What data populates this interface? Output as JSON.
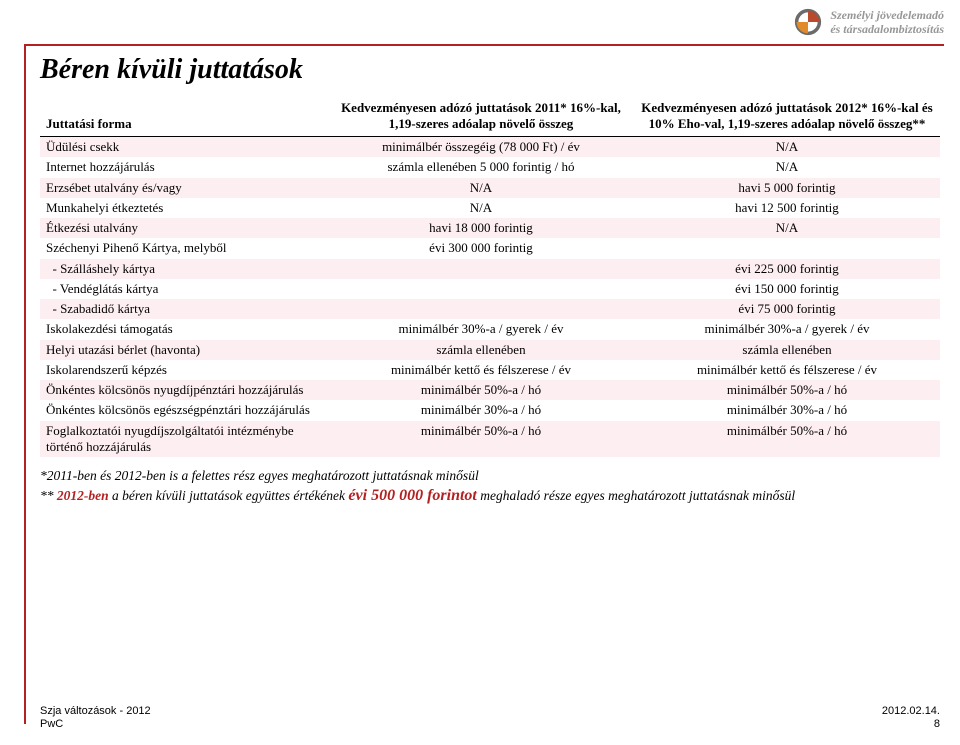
{
  "colors": {
    "accent": "#b22222",
    "shade": "#fdeef1",
    "header_text": "#979797",
    "background": "#ffffff"
  },
  "header": {
    "line1": "Személyi jövedelemadó",
    "line2": "és társadalombiztosítás"
  },
  "title": "Béren kívüli juttatások",
  "table": {
    "col1": "Juttatási forma",
    "col2": "Kedvezményesen adózó juttatások 2011* 16%-kal, 1,19-szeres adóalap növelő összeg",
    "col3": "Kedvezményesen adózó juttatások 2012* 16%-kal és 10% Eho-val, 1,19-szeres adóalap növelő összeg**",
    "rows": [
      {
        "c1": "Üdülési csekk",
        "c2": "minimálbér összegéig (78 000 Ft) / év",
        "c3": "N/A",
        "shade": true
      },
      {
        "c1": "Internet hozzájárulás",
        "c2": "számla ellenében 5 000 forintig / hó",
        "c3": "N/A",
        "shade": false
      },
      {
        "c1": "Erzsébet utalvány és/vagy",
        "c2": "N/A",
        "c3": "havi 5 000 forintig",
        "shade": true
      },
      {
        "c1": "Munkahelyi étkeztetés",
        "c2": "N/A",
        "c3": "havi 12 500 forintig",
        "shade": false
      },
      {
        "c1": "Étkezési utalvány",
        "c2": "havi 18 000 forintig",
        "c3": "N/A",
        "shade": true
      },
      {
        "c1": "Széchenyi Pihenő Kártya, melyből",
        "c2": "évi 300 000 forintig",
        "c3": "",
        "shade": false
      },
      {
        "c1": "  - Szálláshely kártya",
        "c2": "",
        "c3": "évi 225 000 forintig",
        "shade": true
      },
      {
        "c1": "  - Vendéglátás kártya",
        "c2": "",
        "c3": "évi 150 000 forintig",
        "shade": false
      },
      {
        "c1": "  - Szabadidő kártya",
        "c2": "",
        "c3": "évi 75 000 forintig",
        "shade": true
      },
      {
        "c1": "Iskolakezdési támogatás",
        "c2": "minimálbér 30%-a / gyerek / év",
        "c3": "minimálbér 30%-a / gyerek / év",
        "shade": false
      },
      {
        "c1": "Helyi utazási bérlet (havonta)",
        "c2": "számla ellenében",
        "c3": "számla ellenében",
        "shade": true
      },
      {
        "c1": "Iskolarendszerű képzés",
        "c2": "minimálbér kettő és félszerese / év",
        "c3": "minimálbér kettő és félszerese / év",
        "shade": false
      },
      {
        "c1": "Önkéntes kölcsönös nyugdíjpénztári hozzájárulás",
        "c2": "minimálbér 50%-a / hó",
        "c3": "minimálbér 50%-a / hó",
        "shade": true
      },
      {
        "c1": "Önkéntes kölcsönös egészségpénztári hozzájárulás",
        "c2": "minimálbér 30%-a / hó",
        "c3": "minimálbér 30%-a / hó",
        "shade": false
      },
      {
        "c1": "Foglalkoztatói nyugdíjszolgáltatói intézménybe történő hozzájárulás",
        "c2": "minimálbér 50%-a / hó",
        "c3": "minimálbér 50%-a / hó",
        "shade": true
      }
    ]
  },
  "notes": {
    "line1": "*2011-ben és 2012-ben is a felettes rész egyes meghatározott juttatásnak minősül",
    "line2_pre": "** ",
    "line2_hl1": "2012-ben",
    "line2_mid": " a béren kívüli juttatások együttes értékének ",
    "line2_hl2": "évi 500 000 forintot",
    "line2_post": "   meghaladó része egyes meghatározott juttatásnak minősül"
  },
  "footer": {
    "left_line1": "Szja változások - 2012",
    "left_line2": "PwC",
    "right_line1": "2012.02.14.",
    "right_line2": "8"
  }
}
